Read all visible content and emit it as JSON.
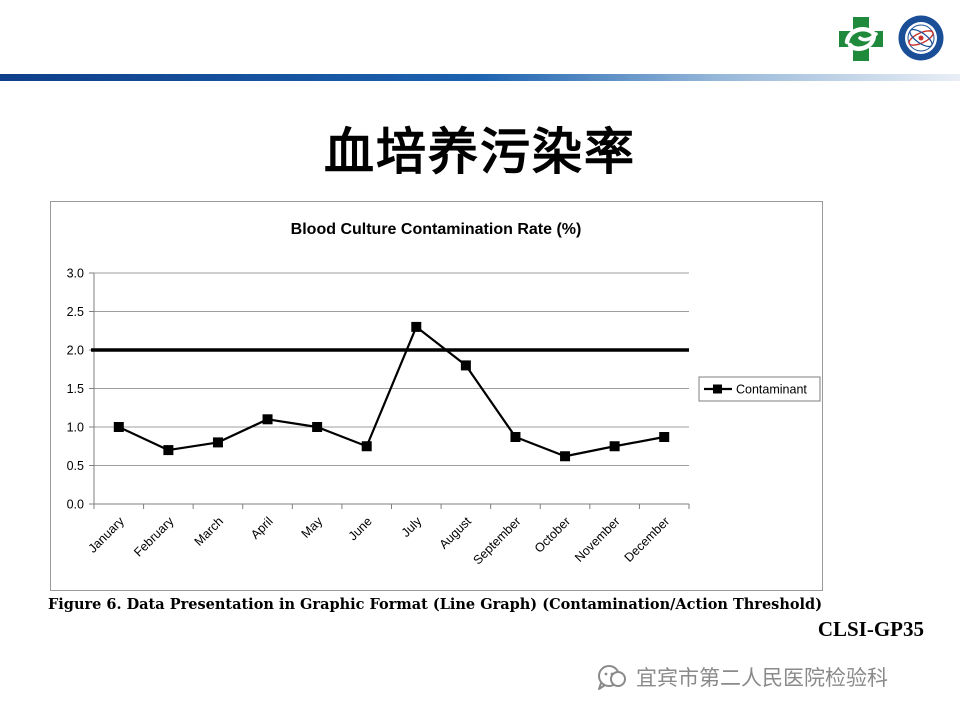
{
  "slide": {
    "title": "血培养污染率",
    "source": "CLSI-GP35",
    "caption": "Figure 6. Data Presentation in Graphic Format (Line Graph) (Contamination/Action Threshold)",
    "watermark": "宜宾市第二人民医院检验科",
    "band_colors": [
      "#0f3f8a",
      "#1d63b0",
      "#e9eef5"
    ]
  },
  "chart_data": {
    "type": "line",
    "title": "Blood Culture Contamination Rate (%)",
    "xlabel": "",
    "ylabel": "",
    "categories": [
      "January",
      "February",
      "March",
      "April",
      "May",
      "June",
      "July",
      "August",
      "September",
      "October",
      "November",
      "December"
    ],
    "series": [
      {
        "name": "Contaminant",
        "values": [
          1.0,
          0.7,
          0.8,
          1.1,
          1.0,
          0.75,
          2.3,
          1.8,
          0.87,
          0.62,
          0.75,
          0.87
        ],
        "color": "#000000",
        "marker": "square"
      }
    ],
    "threshold": 2.0,
    "ylim": [
      0,
      3.0
    ],
    "yticks": [
      "0.0",
      "0.5",
      "1.0",
      "1.5",
      "2.0",
      "2.5",
      "3.0"
    ],
    "grid": true,
    "legend_position": "right"
  }
}
